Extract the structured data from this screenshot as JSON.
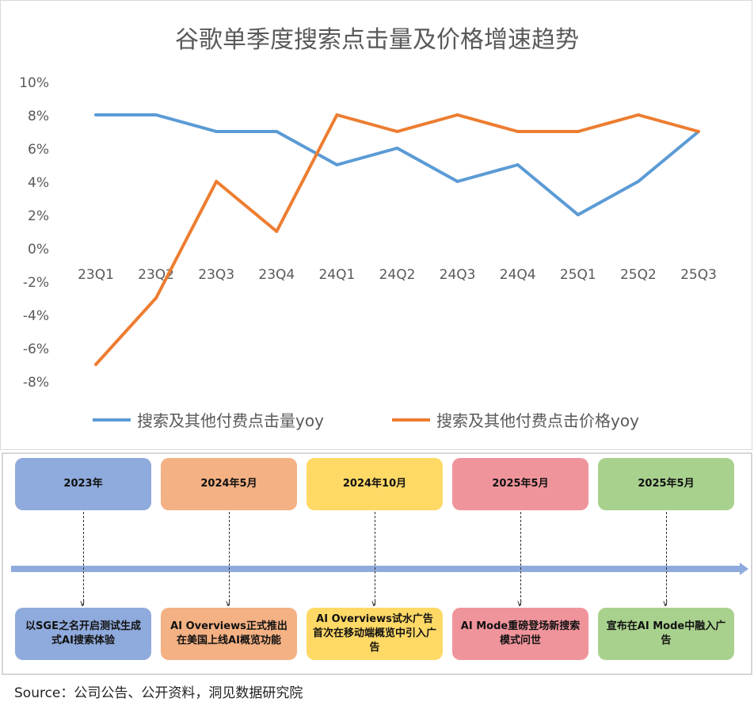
{
  "chart_data": {
    "type": "line",
    "title": "谷歌单季度搜索点击量及价格增速趋势",
    "categories": [
      "23Q1",
      "23Q2",
      "23Q3",
      "23Q4",
      "24Q1",
      "24Q2",
      "24Q3",
      "24Q4",
      "25Q1",
      "25Q2",
      "25Q3"
    ],
    "y_ticks": [
      "10%",
      "8%",
      "6%",
      "4%",
      "2%",
      "0%",
      "-2%",
      "-4%",
      "-6%",
      "-8%"
    ],
    "ylim": [
      -8,
      10
    ],
    "grid": false,
    "legend_position": "bottom",
    "series": [
      {
        "name": "搜索及其他付费点击量yoy",
        "color": "#5b9bd5",
        "values": [
          8,
          8,
          7,
          7,
          5,
          6,
          4,
          5,
          2,
          4,
          7
        ]
      },
      {
        "name": "搜索及其他付费点击价格yoy",
        "color": "#ed7d31",
        "values": [
          -7,
          -3,
          4,
          1,
          8,
          7,
          8,
          7,
          7,
          8,
          7
        ]
      }
    ]
  },
  "timeline": [
    {
      "date": "2023年",
      "event": "以SGE之名开启测试生成式AI搜索体验",
      "color": "#8faadc"
    },
    {
      "date": "2024年5月",
      "event": "AI Overviews正式推出在美国上线AI概览功能",
      "color": "#f4b183"
    },
    {
      "date": "2024年10月",
      "event": "AI Overviews试水广告首次在移动端概览中引入广告",
      "color": "#ffd966"
    },
    {
      "date": "2025年5月",
      "event": "AI Mode重磅登场新搜索模式问世",
      "color": "#f0949c"
    },
    {
      "date": "2025年5月",
      "event": "宣布在AI Mode中融入广告",
      "color": "#a9d18e"
    }
  ],
  "source": "Source：公司公告、公开资料，洞见数据研究院"
}
